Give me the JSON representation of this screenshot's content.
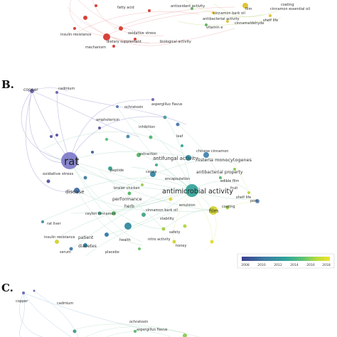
{
  "panels": [
    {
      "letter": "",
      "labels": [
        "cinnamon bark oil",
        "film",
        "insulin resistance",
        "dietary supplement",
        "biological activity",
        "antibacterial activity",
        "fatty acid",
        "cinnamaldehyde",
        "mechanism",
        "oxidative stress",
        "vitamin e",
        "antioxidant activity",
        "cinnamon essential oil",
        "coating",
        "shelf life"
      ]
    },
    {
      "letter": "B.",
      "labels": [
        "copper",
        "cadmium",
        "ochratoxin",
        "aspergillus flavus",
        "amphotericin",
        "inhibition",
        "rat",
        "oxidative stress",
        "extraction",
        "antifungal activity",
        "chinese cinnamon",
        "listeria monocytogenes",
        "leaf",
        "antimicrobial activity",
        "cassia",
        "peptide",
        "antibacterial property",
        "disease",
        "broiler chicken",
        "encapsulation",
        "edible film",
        "performance",
        "cinnamon bark oil",
        "emulsion",
        "herb",
        "stability",
        "ceylon cinnamon",
        "shelf life",
        "coating",
        "film",
        "rat liver",
        "safety",
        "patient",
        "insulin resistance",
        "diabetes",
        "health",
        "nitro activity",
        "honey",
        "serum",
        "placebo",
        "pork",
        "fruit"
      ]
    },
    {
      "letter": "C.",
      "labels": [
        "copper",
        "cadmium",
        "aspergillus flavus",
        "ochratoxin"
      ]
    }
  ],
  "colorbar": {
    "ticks": [
      "2008",
      "2010",
      "2012",
      "2014",
      "2016",
      "2018"
    ],
    "colors": [
      "#3b3f8f",
      "#3e78a3",
      "#2fa39a",
      "#5fc373",
      "#b5dc3e",
      "#f1e32a"
    ]
  },
  "colors": {
    "purple": "#7b78c8",
    "blue": "#4c89b6",
    "teal": "#35a79b",
    "green": "#79c46a",
    "yellow": "#e5dd3a",
    "red": "#d8423a"
  }
}
